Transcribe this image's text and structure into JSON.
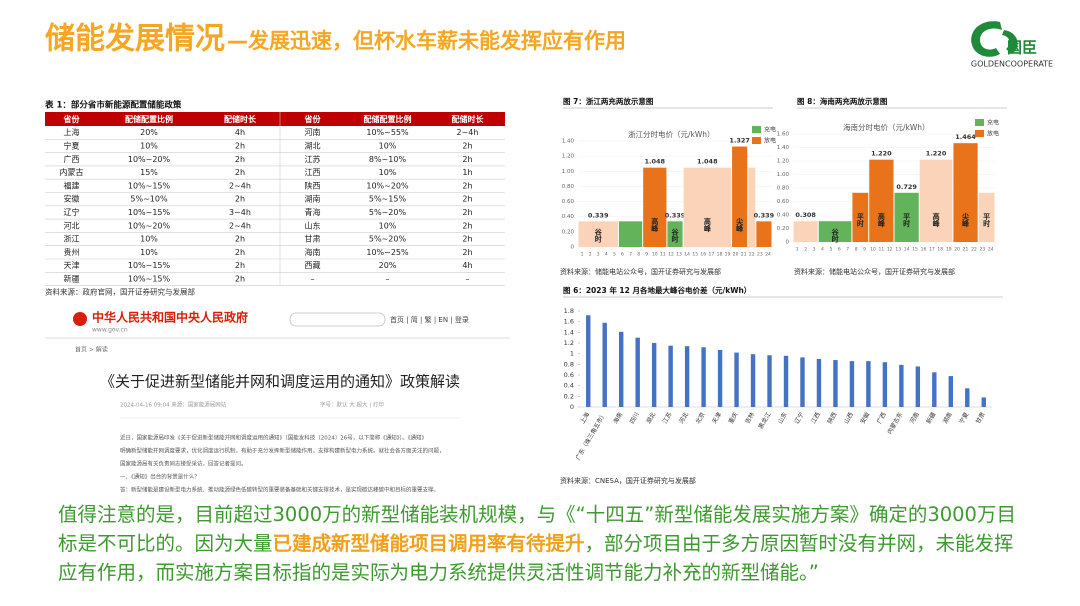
{
  "header": {
    "title": "储能发展情况",
    "subtitle": "—发展迅速，但杯水车薪未能发挥应有作用"
  },
  "logo": {
    "mark": "国臣",
    "name": "GOLDENCOOPERATE"
  },
  "table": {
    "title": "表 1：部分省市新能源配置储能政策",
    "columns": [
      "省份",
      "配储配置比例",
      "配储时长",
      "省份",
      "配储配置比例",
      "配储时长"
    ],
    "rows": [
      [
        "上海",
        "20%",
        "4h",
        "河南",
        "10%~55%",
        "2~4h"
      ],
      [
        "宁夏",
        "10%",
        "2h",
        "湖北",
        "10%",
        "2h"
      ],
      [
        "广西",
        "10%~20%",
        "2h",
        "江苏",
        "8%~10%",
        "2h"
      ],
      [
        "内蒙古",
        "15%",
        "2h",
        "江西",
        "10%",
        "1h"
      ],
      [
        "福建",
        "10%~15%",
        "2~4h",
        "陕西",
        "10%~20%",
        "2h"
      ],
      [
        "安徽",
        "5%~10%",
        "2h",
        "湖南",
        "5%~15%",
        "2h"
      ],
      [
        "辽宁",
        "10%~15%",
        "3~4h",
        "青海",
        "5%~20%",
        "2h"
      ],
      [
        "河北",
        "10%~20%",
        "2~4h",
        "山东",
        "10%",
        "2h"
      ],
      [
        "浙江",
        "10%",
        "2h",
        "甘肃",
        "5%~20%",
        "2h"
      ],
      [
        "贵州",
        "10%",
        "2h",
        "海南",
        "10%~25%",
        "2h"
      ],
      [
        "天津",
        "10%~15%",
        "2h",
        "西藏",
        "20%",
        "4h"
      ],
      [
        "新疆",
        "10%~15%",
        "2h",
        "–",
        "–",
        "–"
      ]
    ],
    "source": "资料来源：政府官网，国开证券研究与发展部"
  },
  "gov_screenshot": {
    "site": "中华人民共和国中央人民政府",
    "url": "www.gov.cn",
    "nav": "首页 | 简 | 繁 | EN | 登录",
    "breadcrumb": "首页 > 解读",
    "heading": "《关于促进新型储能并网和调度运用的通知》政策解读",
    "meta": "2024-04-16 09:04  来源：国家能源局网站",
    "tools": "字号：默认 大 超大  | 打印",
    "paragraphs": [
      "近日，国家能源局印发《关于促进新型储能并网和调度运用的通知》（国能发科技〔2024〕26号，以下简称《通知》）。《通知》",
      "明确新型储能并网调度要求，优化调度运行机制，有助于充分发挥新型储能作用，支撑构建新型电力系统。就社会各方面关注的问题，",
      "国家能源局有关负责同志接受采访，回答记者提问。",
      "一、《通知》出台的背景是什么？",
      "答：新型储能是建设新型电力系统、推动能源绿色低碳转型的重要装备基础和关键支撑技术，是实现碳达峰碳中和目标的重要支撑。"
    ]
  },
  "charts": [
    {
      "type": "step",
      "figure_title": "图 7：浙江两充两放示意图",
      "title": "浙江分时电价（元/kWh）",
      "legend": [
        {
          "name": "充电",
          "color": "#62b35a"
        },
        {
          "name": "放电",
          "color": "#e8731a"
        }
      ],
      "xlim": [
        0,
        24
      ],
      "xticks": [
        1,
        2,
        3,
        4,
        5,
        6,
        7,
        8,
        9,
        10,
        11,
        12,
        13,
        14,
        15,
        16,
        17,
        18,
        19,
        20,
        21,
        22,
        23,
        24
      ],
      "ylim": [
        0,
        1.4
      ],
      "yticks": [
        0,
        {
          "value": 0.2,
          "label": "0.20"
        },
        {
          "value": 0.4,
          "label": "0.40"
        },
        {
          "value": 0.6,
          "label": "0.60"
        },
        {
          "value": 0.8,
          "label": "0.80"
        },
        {
          "value": 1,
          "label": "1.00"
        },
        {
          "value": 1.2,
          "label": "1.20"
        },
        {
          "value": 1.4,
          "label": "1.40"
        }
      ],
      "segments": [
        {
          "start": 0,
          "end": 5,
          "value": 0.339,
          "color": "#fbd3b8",
          "label": "谷时",
          "value_label": "0.339"
        },
        {
          "start": 5,
          "end": 8,
          "value": 0.339,
          "color": "#62b35a"
        },
        {
          "start": 8,
          "end": 11,
          "value": 1.048,
          "color": "#e8731a",
          "label": "高峰",
          "value_label": "1.048"
        },
        {
          "start": 11,
          "end": 13,
          "value": 0.339,
          "color": "#62b35a",
          "label": "谷时",
          "value_label": "0.339"
        },
        {
          "start": 13,
          "end": 19,
          "value": 1.048,
          "color": "#fbd3b8",
          "label": "高峰",
          "value_label": "1.048"
        },
        {
          "start": 19,
          "end": 21,
          "value": 1.327,
          "color": "#e8731a",
          "label": "尖峰",
          "value_label": "1.327"
        },
        {
          "start": 21,
          "end": 22,
          "value": 1.048,
          "color": "#fbd3b8"
        },
        {
          "start": 22,
          "end": 24,
          "value": 0.339,
          "color": "#e8731a",
          "value_label": "0.339"
        }
      ],
      "source": "资料来源：储能电站公众号，国开证券研究与发展部"
    },
    {
      "type": "step",
      "figure_title": "图 8：海南两充两放示意图",
      "title": "海南分时电价（元/kWh）",
      "legend": [
        {
          "name": "充电",
          "color": "#62b35a"
        },
        {
          "name": "放电",
          "color": "#e8731a"
        }
      ],
      "xlim": [
        0,
        24
      ],
      "xticks": [
        1,
        2,
        3,
        4,
        5,
        6,
        7,
        8,
        9,
        10,
        11,
        12,
        13,
        14,
        15,
        16,
        17,
        18,
        19,
        20,
        21,
        22,
        23,
        24
      ],
      "ylim": [
        0,
        1.6
      ],
      "yticks": [
        0,
        {
          "value": 0.2,
          "label": "0.20"
        },
        {
          "value": 0.4,
          "label": "0.40"
        },
        {
          "value": 0.6,
          "label": "0.60"
        },
        {
          "value": 0.8,
          "label": "0.80"
        },
        {
          "value": 1,
          "label": "1.00"
        },
        {
          "value": 1.2,
          "label": "1.20"
        },
        {
          "value": 1.4,
          "label": "1.40"
        },
        {
          "value": 1.6,
          "label": "1.60"
        }
      ],
      "segments": [
        {
          "start": 0,
          "end": 3,
          "value": 0.308,
          "color": "#fbd3b8",
          "value_label": "0.308"
        },
        {
          "start": 3,
          "end": 7,
          "value": 0.308,
          "color": "#62b35a",
          "label": "谷时"
        },
        {
          "start": 7,
          "end": 9,
          "value": 0.729,
          "color": "#e8731a",
          "label": "平时"
        },
        {
          "start": 9,
          "end": 12,
          "value": 1.22,
          "color": "#e8731a",
          "label": "高峰",
          "value_label": "1.220"
        },
        {
          "start": 12,
          "end": 15,
          "value": 0.729,
          "color": "#62b35a",
          "label": "平时",
          "value_label": "0.729"
        },
        {
          "start": 15,
          "end": 19,
          "value": 1.22,
          "color": "#fbd3b8",
          "label": "高峰",
          "value_label": "1.220"
        },
        {
          "start": 19,
          "end": 22,
          "value": 1.464,
          "color": "#e8731a",
          "label": "尖峰",
          "value_label": "1.464"
        },
        {
          "start": 22,
          "end": 24,
          "value": 0.729,
          "color": "#fbd3b8",
          "label": "平时"
        }
      ],
      "source": "资料来源：储能电站公众号，国开证券研究与发展部"
    },
    {
      "type": "bar",
      "figure_title": "图 6：2023 年 12 月各地最大峰谷电价差（元/kWh）",
      "color": "#4472c4",
      "categories": [
        "上海",
        "广东（珠三角五市）",
        "海南",
        "四川",
        "湖北",
        "江苏",
        "河北",
        "北京",
        "天津",
        "重庆",
        "吉林",
        "黑龙江",
        "山东",
        "辽宁",
        "江西",
        "陕西",
        "山西",
        "安徽",
        "广西",
        "内蒙古东",
        "河南",
        "新疆",
        "湖南",
        "宁夏",
        "甘肃"
      ],
      "values": [
        1.72,
        1.58,
        1.41,
        1.3,
        1.2,
        1.15,
        1.14,
        1.12,
        1.07,
        1.02,
        0.99,
        0.97,
        0.96,
        0.93,
        0.9,
        0.88,
        0.86,
        0.86,
        0.84,
        0.79,
        0.76,
        0.65,
        0.58,
        0.35,
        0.18
      ],
      "ylim": [
        0,
        1.8
      ],
      "yticks": [
        0,
        0.2,
        0.4,
        0.6,
        0.8,
        1,
        1.2,
        1.4,
        1.6,
        1.8
      ],
      "source": "资料来源：CNESA，国开证券研究与发展部"
    }
  ],
  "note": {
    "before": "值得注意的是，目前超过3000万的新型储能装机规模，与《“十四五”新型储能发展实施方案》确定的3000万目标是不可比的。因为大量",
    "highlight": "已建成新型储能项目调用率有待提升",
    "after": "，部分项目由于多方原因暂时没有并网，未能发挥应有作用，而实施方案目标指的是实际为电力系统提供灵活性调节能力补充的新型储能。”"
  }
}
